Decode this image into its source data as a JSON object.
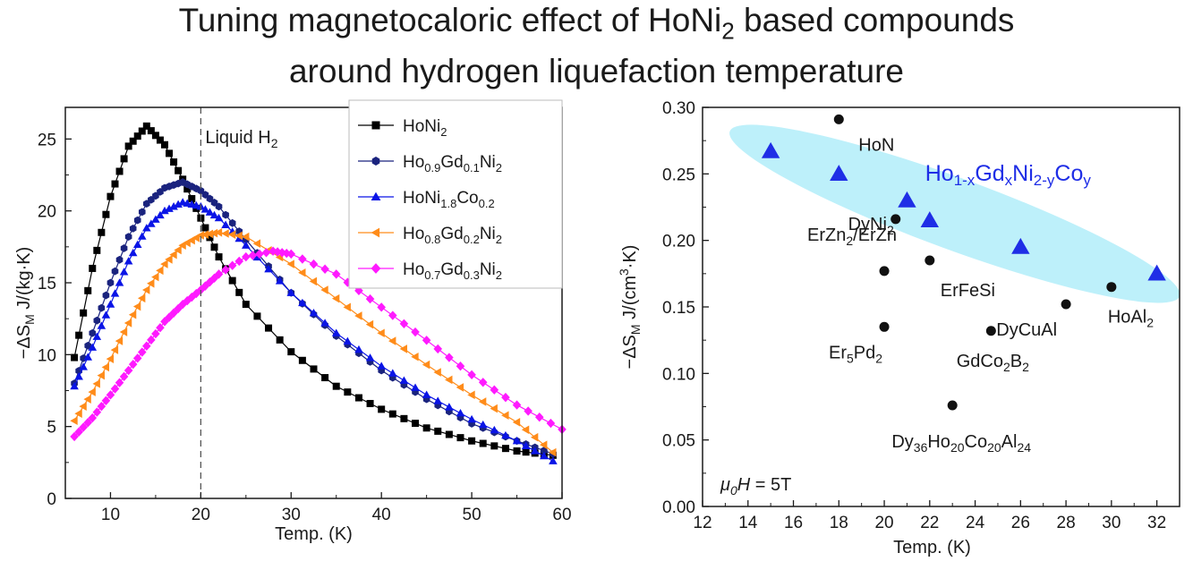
{
  "title": {
    "line1_pre": "Tuning magnetocaloric effect of HoNi",
    "line1_sub": "2",
    "line1_post": " based compounds",
    "line2": "around hydrogen liquefaction temperature"
  },
  "chart_data": [
    {
      "type": "line",
      "xlabel": "Temp. (K)",
      "ylabel": {
        "pre": "−ΔS",
        "sub": "M",
        "post": " J/(kg·K)"
      },
      "xlim": [
        5,
        60
      ],
      "ylim": [
        0,
        27.2
      ],
      "xticks": [
        10,
        20,
        30,
        40,
        50,
        60
      ],
      "yticks": [
        0,
        5,
        10,
        15,
        20,
        25
      ],
      "grid": false,
      "legend": "top-right",
      "annotation": {
        "text_pre": "Liquid H",
        "text_sub": "2",
        "x": 20
      },
      "series": [
        {
          "name": [
            [
              "HoNi",
              ""
            ],
            [
              "2",
              "sub"
            ]
          ],
          "color": "#000000",
          "marker": "square",
          "x": [
            6,
            8,
            10,
            12,
            14,
            16,
            18,
            20,
            22,
            25,
            30,
            35,
            40,
            45,
            50,
            55,
            59
          ],
          "y": [
            9.8,
            16,
            21,
            24.5,
            25.9,
            24.6,
            22.2,
            19.5,
            16.8,
            13.5,
            10.2,
            7.8,
            6.2,
            4.9,
            4.0,
            3.3,
            3.0
          ]
        },
        {
          "name": [
            [
              "Ho",
              ""
            ],
            [
              "0.9",
              "sub"
            ],
            [
              "Gd",
              ""
            ],
            [
              "0.1",
              "sub"
            ],
            [
              "Ni",
              ""
            ],
            [
              "2",
              "sub"
            ]
          ],
          "color": "#1a237e",
          "marker": "hexagon",
          "x": [
            6,
            8,
            10,
            12,
            14,
            16,
            18,
            20,
            22,
            25,
            30,
            35,
            40,
            45,
            50,
            55,
            59
          ],
          "y": [
            8.0,
            11.5,
            15.0,
            18.2,
            20.5,
            21.6,
            22.0,
            21.4,
            20.3,
            18.0,
            14.3,
            11.3,
            8.9,
            6.9,
            5.2,
            4.0,
            3.1
          ]
        },
        {
          "name": [
            [
              "HoNi",
              ""
            ],
            [
              "1.8",
              "sub"
            ],
            [
              "Co",
              ""
            ],
            [
              "0.2",
              "sub"
            ]
          ],
          "color": "#0a14e6",
          "marker": "triangle-up",
          "x": [
            6,
            8,
            10,
            12,
            14,
            16,
            18,
            20,
            22,
            25,
            30,
            35,
            40,
            45,
            50,
            55,
            59
          ],
          "y": [
            7.8,
            10.5,
            13.5,
            16.5,
            18.8,
            20.0,
            20.6,
            20.3,
            19.5,
            17.6,
            14.3,
            11.5,
            9.2,
            7.2,
            5.5,
            4.0,
            2.6
          ]
        },
        {
          "name": [
            [
              "Ho",
              ""
            ],
            [
              "0.8",
              "sub"
            ],
            [
              "Gd",
              ""
            ],
            [
              "0.2",
              "sub"
            ],
            [
              "Ni",
              ""
            ],
            [
              "2",
              "sub"
            ]
          ],
          "color": "#ff8c1a",
          "marker": "triangle-left",
          "x": [
            6,
            8,
            10,
            12,
            14,
            16,
            18,
            20,
            22,
            25,
            30,
            35,
            40,
            45,
            50,
            55,
            59
          ],
          "y": [
            5.4,
            7.4,
            9.7,
            12.2,
            14.5,
            16.3,
            17.6,
            18.3,
            18.5,
            18.2,
            16.3,
            13.9,
            11.5,
            9.3,
            7.2,
            5.3,
            3.2
          ]
        },
        {
          "name": [
            [
              "Ho",
              ""
            ],
            [
              "0.7",
              "sub"
            ],
            [
              "Gd",
              ""
            ],
            [
              "0.3",
              "sub"
            ],
            [
              "Ni",
              ""
            ],
            [
              "2",
              "sub"
            ]
          ],
          "color": "#ff1aff",
          "marker": "diamond",
          "x": [
            6,
            8,
            10,
            12,
            14,
            16,
            18,
            20,
            22,
            25,
            28,
            30,
            35,
            40,
            45,
            50,
            55,
            60
          ],
          "y": [
            4.3,
            5.6,
            7.2,
            8.9,
            10.6,
            12.3,
            13.5,
            14.5,
            15.6,
            16.8,
            17.2,
            17.0,
            15.6,
            13.3,
            11.0,
            8.6,
            6.5,
            4.8
          ]
        }
      ]
    },
    {
      "type": "scatter",
      "xlabel": "Temp. (K)",
      "ylabel": {
        "pre": "−ΔS",
        "sub": "M",
        "post": " J/(cm",
        "sup": "3",
        "post2": "·K)"
      },
      "xlim": [
        12,
        33
      ],
      "ylim": [
        0,
        0.3
      ],
      "xticks": [
        12,
        14,
        16,
        18,
        20,
        22,
        24,
        26,
        28,
        30,
        32
      ],
      "yticks": [
        "0.00",
        "0.05",
        "0.10",
        "0.15",
        "0.20",
        "0.25",
        "0.30"
      ],
      "grid": false,
      "annotation": {
        "parts": [
          [
            "μ",
            "it"
          ],
          [
            "0",
            "sub-it"
          ],
          [
            "H",
            "it"
          ],
          [
            " = 5T",
            ""
          ]
        ]
      },
      "series": [
        {
          "name": [
            [
              "Ho",
              ""
            ],
            [
              "1-x",
              "sub"
            ],
            [
              "Gd",
              ""
            ],
            [
              "x",
              "sub"
            ],
            [
              "Ni",
              ""
            ],
            [
              "2-y",
              "sub"
            ],
            [
              "Co",
              ""
            ],
            [
              "y",
              "sub"
            ]
          ],
          "color": "#1f2ee6",
          "marker": "triangle-up",
          "x": [
            15,
            18,
            21,
            22,
            26,
            32
          ],
          "y": [
            0.267,
            0.25,
            0.23,
            0.215,
            0.195,
            0.175
          ]
        },
        {
          "name": [],
          "color": "#000000",
          "marker": "circle",
          "points": [
            {
              "x": 18,
              "y": 0.291,
              "label": [
                [
                  "HoN",
                  ""
                ]
              ]
            },
            {
              "x": 20.5,
              "y": 0.216,
              "label": [
                [
                  "DyNi",
                  ""
                ],
                [
                  "2",
                  "sub"
                ]
              ]
            },
            {
              "x": 20,
              "y": 0.177,
              "label": [
                [
                  "ErZn",
                  ""
                ],
                [
                  "2",
                  "sub"
                ],
                [
                  "/ErZn",
                  ""
                ]
              ]
            },
            {
              "x": 22,
              "y": 0.185,
              "label": [
                [
                  "ErFeSi",
                  ""
                ]
              ]
            },
            {
              "x": 20,
              "y": 0.135,
              "label": [
                [
                  "Er",
                  ""
                ],
                [
                  "5",
                  "sub"
                ],
                [
                  "Pd",
                  ""
                ],
                [
                  "2",
                  "sub"
                ]
              ]
            },
            {
              "x": 24.7,
              "y": 0.132,
              "label": [
                [
                  "GdCo",
                  ""
                ],
                [
                  "2",
                  "sub"
                ],
                [
                  "B",
                  ""
                ],
                [
                  "2",
                  "sub"
                ]
              ]
            },
            {
              "x": 28,
              "y": 0.152,
              "label": [
                [
                  "DyCuAl",
                  ""
                ]
              ]
            },
            {
              "x": 30,
              "y": 0.165,
              "label": [
                [
                  "HoAl",
                  ""
                ],
                [
                  "2",
                  "sub"
                ]
              ]
            },
            {
              "x": 23,
              "y": 0.076,
              "label": [
                [
                  "Dy",
                  ""
                ],
                [
                  "36",
                  "sub"
                ],
                [
                  "Ho",
                  ""
                ],
                [
                  "20",
                  "sub"
                ],
                [
                  "Co",
                  ""
                ],
                [
                  "20",
                  "sub"
                ],
                [
                  "Al",
                  ""
                ],
                [
                  "24",
                  "sub"
                ]
              ]
            }
          ]
        }
      ]
    }
  ]
}
